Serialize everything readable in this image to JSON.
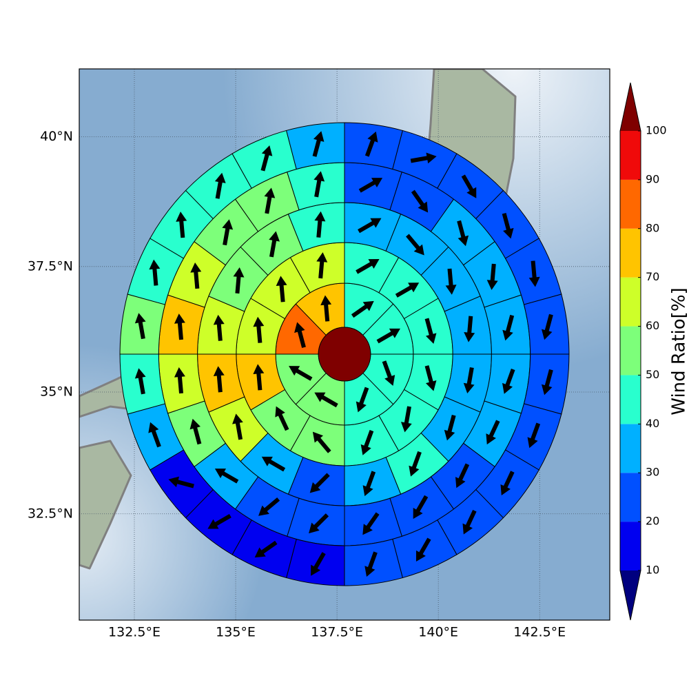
{
  "chart_data": {
    "type": "wind-rose-map",
    "projection": "mercator",
    "xlim": [
      131.14,
      144.23
    ],
    "ylim": [
      30.26,
      41.27
    ],
    "xticks": [
      {
        "value": 132.5,
        "label": "132.5°E"
      },
      {
        "value": 135,
        "label": "135°E"
      },
      {
        "value": 137.5,
        "label": "137.5°E"
      },
      {
        "value": 140,
        "label": "140°E"
      },
      {
        "value": 142.5,
        "label": "142.5°E"
      }
    ],
    "yticks": [
      {
        "value": 32.5,
        "label": "32.5°N"
      },
      {
        "value": 35,
        "label": "35°N"
      },
      {
        "value": 37.5,
        "label": "37.5°N"
      },
      {
        "value": 40,
        "label": "40°N"
      }
    ],
    "grid": true,
    "center_value": 110,
    "rings": [
      {
        "values": [
          45,
          45,
          45,
          45,
          55,
          55,
          85,
          75
        ],
        "directions": [
          55,
          60,
          160,
          200,
          300,
          300,
          345,
          355
        ]
      },
      {
        "values": [
          45,
          45,
          40,
          40,
          40,
          45,
          55,
          55,
          75,
          65,
          65,
          65
        ],
        "directions": [
          60,
          60,
          165,
          165,
          190,
          200,
          320,
          335,
          355,
          355,
          355,
          5
        ]
      },
      {
        "values": [
          35,
          35,
          35,
          35,
          35,
          35,
          45,
          35,
          25,
          35,
          65,
          75,
          65,
          55,
          55,
          45
        ],
        "directions": [
          60,
          140,
          175,
          185,
          190,
          195,
          200,
          200,
          225,
          300,
          350,
          355,
          355,
          5,
          10,
          5
        ]
      },
      {
        "values": [
          25,
          25,
          35,
          35,
          35,
          35,
          35,
          25,
          25,
          25,
          25,
          25,
          35,
          55,
          65,
          75,
          65,
          55,
          55,
          45
        ],
        "directions": [
          60,
          145,
          165,
          185,
          195,
          200,
          205,
          205,
          210,
          215,
          225,
          230,
          300,
          345,
          355,
          355,
          355,
          10,
          10,
          10
        ]
      },
      {
        "values": [
          25,
          25,
          25,
          25,
          25,
          25,
          25,
          25,
          25,
          25,
          25,
          25,
          15,
          15,
          15,
          15,
          35,
          45,
          55,
          45,
          45,
          45,
          45,
          35
        ],
        "directions": [
          20,
          80,
          150,
          165,
          175,
          195,
          195,
          200,
          205,
          205,
          210,
          200,
          210,
          235,
          240,
          285,
          340,
          350,
          350,
          355,
          355,
          10,
          15,
          15
        ]
      }
    ],
    "colorbar": {
      "label": "Wind Ratio[%]",
      "levels": [
        10,
        20,
        30,
        40,
        50,
        60,
        70,
        80,
        90,
        100
      ],
      "colors": [
        "#00007f",
        "#0000f0",
        "#0050ff",
        "#00b0ff",
        "#29ffce",
        "#7dff7a",
        "#ceff29",
        "#ffc400",
        "#ff6800",
        "#f00a0a",
        "#7f0000"
      ]
    }
  }
}
